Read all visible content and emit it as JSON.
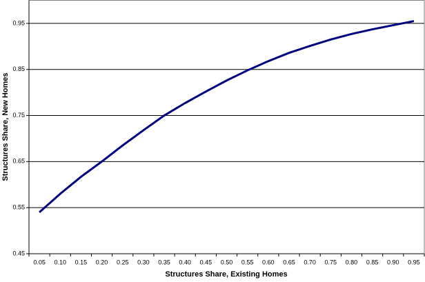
{
  "chart_data": {
    "type": "line",
    "x_label": "Structures Share, Existing Homes",
    "y_label": "Structures Share, New Homes",
    "categories": [
      "0.05",
      "0.10",
      "0.15",
      "0.20",
      "0.25",
      "0.30",
      "0.35",
      "0.40",
      "0.45",
      "0.50",
      "0.55",
      "0.60",
      "0.65",
      "0.70",
      "0.75",
      "0.80",
      "0.85",
      "0.90",
      "0.95"
    ],
    "series": [
      {
        "color": "#000080",
        "values": [
          0.54,
          0.58,
          0.617,
          0.65,
          0.685,
          0.718,
          0.75,
          0.777,
          0.802,
          0.826,
          0.848,
          0.868,
          0.886,
          0.901,
          0.915,
          0.927,
          0.937,
          0.946,
          0.955
        ]
      }
    ],
    "ylim": [
      0.45,
      1.0
    ],
    "yticks": [
      0.45,
      0.55,
      0.65,
      0.75,
      0.85,
      0.95
    ],
    "grid": true
  }
}
